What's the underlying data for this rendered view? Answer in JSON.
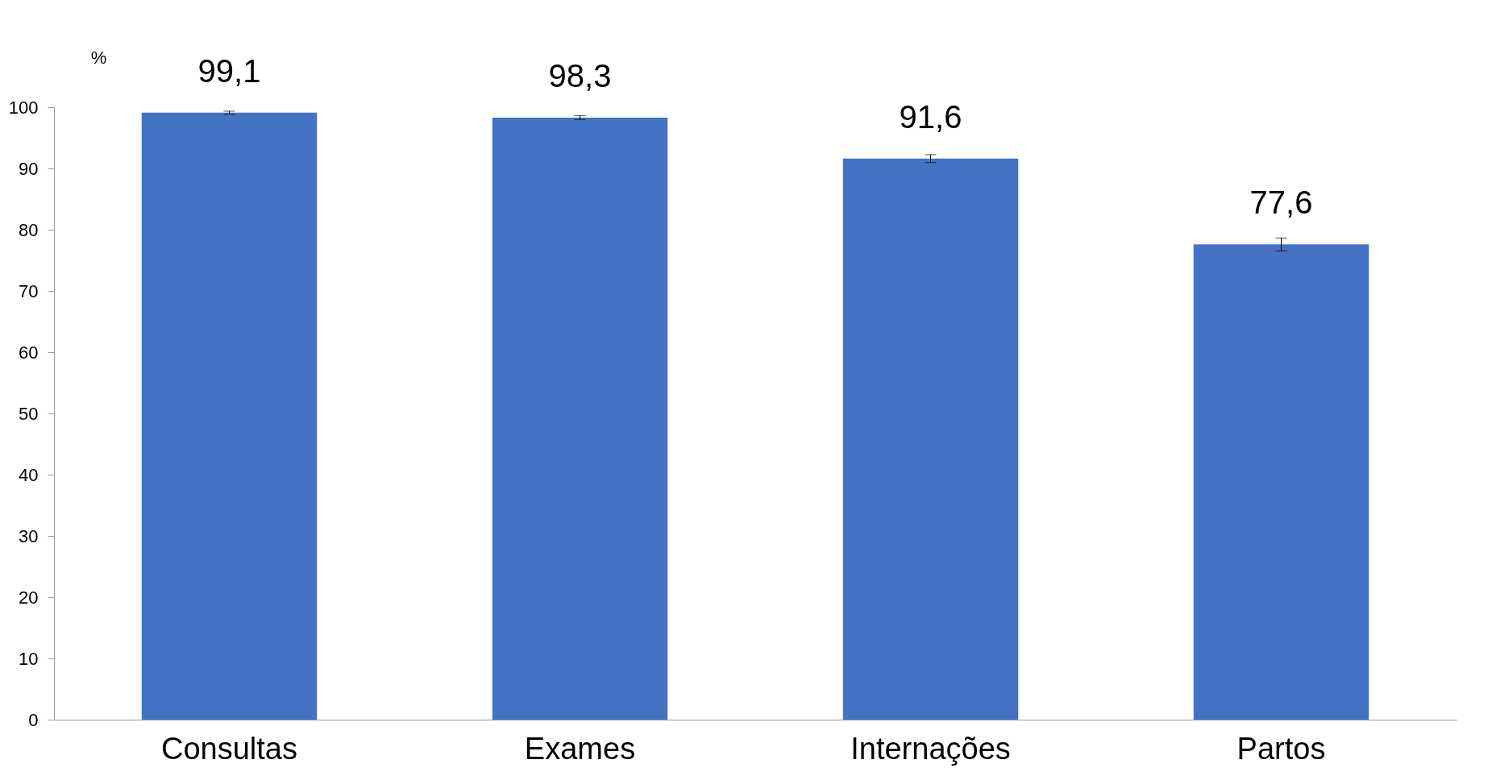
{
  "chart_data": {
    "type": "bar",
    "ylabel": "%",
    "categories": [
      "Consultas",
      "Exames",
      "Internações",
      "Partos"
    ],
    "values": [
      99.1,
      98.3,
      91.6,
      77.6
    ],
    "errors": [
      0.25,
      0.3,
      0.65,
      1.05
    ],
    "color": "#4472c4",
    "ylim": [
      0,
      100
    ],
    "yticks": [
      0,
      10,
      20,
      30,
      40,
      50,
      60,
      70,
      80,
      90,
      100
    ],
    "value_labels": [
      "99,1",
      "98,3",
      "91,6",
      "77,6"
    ]
  }
}
